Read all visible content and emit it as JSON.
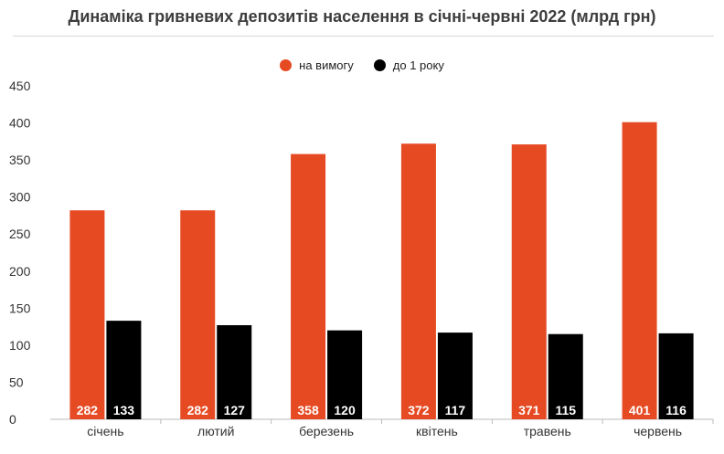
{
  "title": "Динаміка гривневих депозитів населення в січні-червні 2022 (млрд грн)",
  "colors": {
    "series_1": "#e64a23",
    "series_2": "#000000",
    "axis_text": "#333333"
  },
  "chart_data": {
    "type": "bar",
    "title": "Динаміка гривневих депозитів населення в січні-червні 2022 (млрд грн)",
    "categories": [
      "січень",
      "лютий",
      "березень",
      "квітень",
      "травень",
      "червень"
    ],
    "series": [
      {
        "name": "на вимогу",
        "values": [
          282,
          282,
          358,
          372,
          371,
          401
        ]
      },
      {
        "name": "до 1 року",
        "values": [
          133,
          127,
          120,
          117,
          115,
          116
        ]
      }
    ],
    "ylim": [
      0,
      450
    ],
    "yticks": [
      "0",
      "50",
      "100",
      "150",
      "200",
      "250",
      "300",
      "350",
      "400",
      "450"
    ],
    "grid": false,
    "legend": "top-center",
    "data_labels": "inside-bottom"
  }
}
